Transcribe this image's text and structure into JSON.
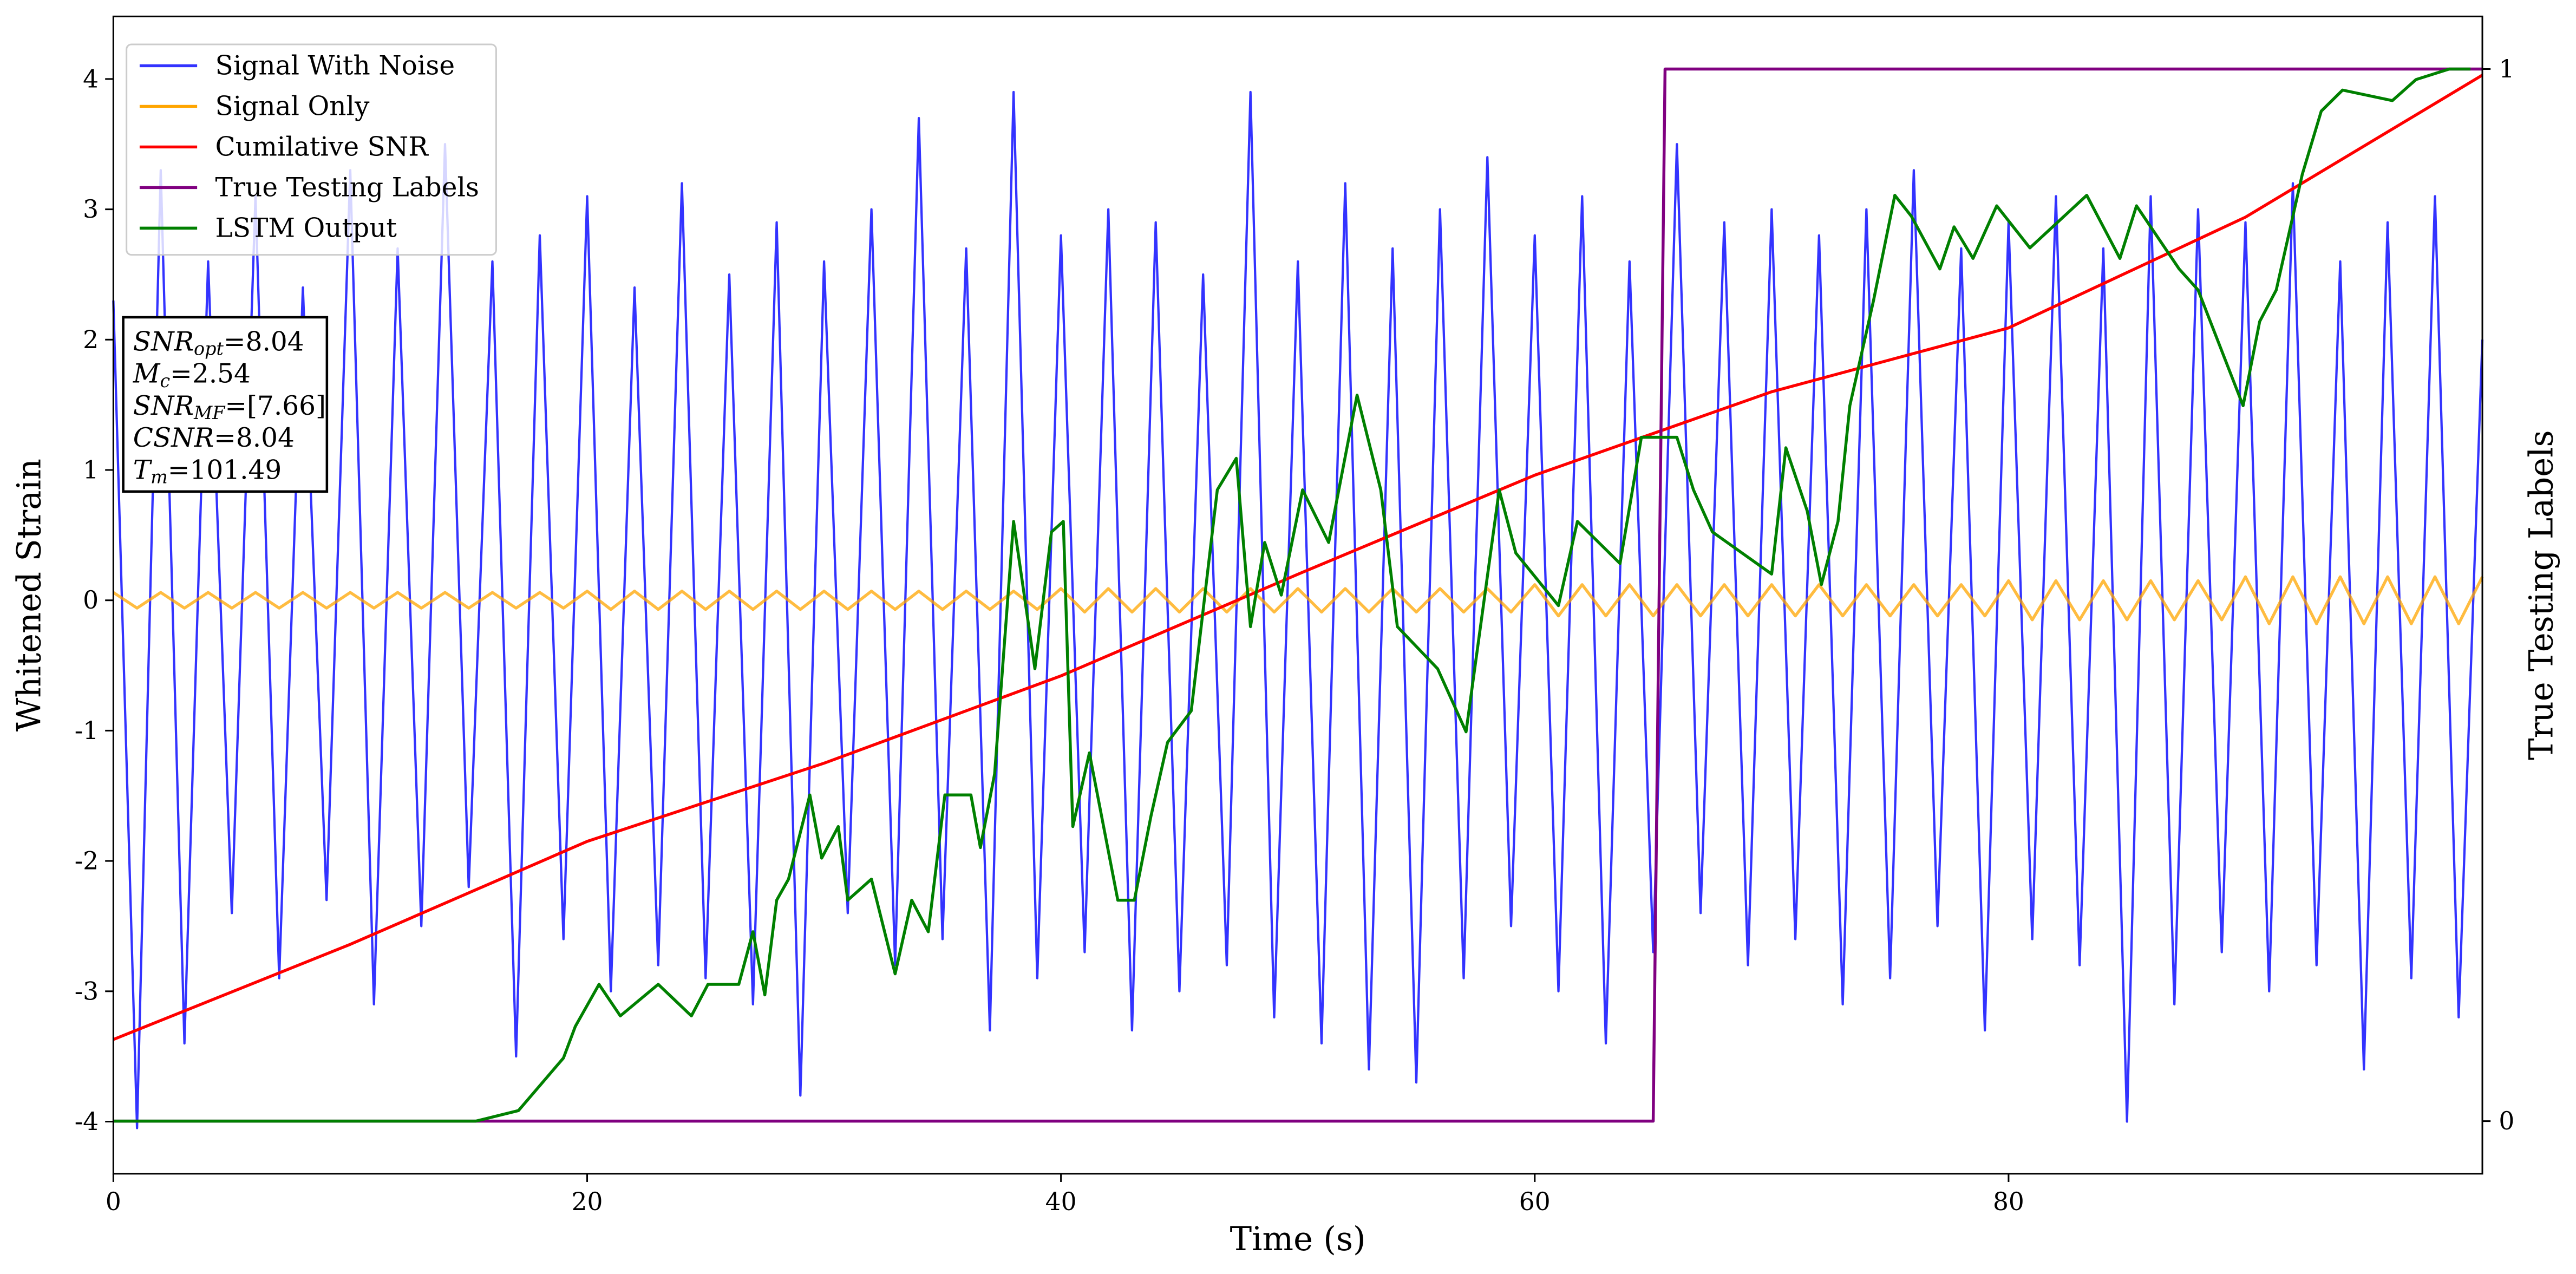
{
  "chart_data": {
    "type": "line",
    "xlabel": "Time (s)",
    "ylabel": "Whitened Strain",
    "y2label": "True Testing Labels",
    "xlim": [
      0,
      100
    ],
    "ylim": [
      -4.4,
      4.48
    ],
    "y2lim": [
      -0.05,
      1.05
    ],
    "xticks": [
      0,
      20,
      40,
      60,
      80
    ],
    "yticks": [
      -4,
      -3,
      -2,
      -1,
      0,
      1,
      2,
      3,
      4
    ],
    "y2ticks": [
      0,
      1
    ],
    "grid": false,
    "legend_loc": "upper left",
    "annotation_lines": [
      {
        "symbol": "SNR",
        "subscript": "opt",
        "text": "=8.04"
      },
      {
        "symbol": "M",
        "subscript": "c",
        "text": "=2.54"
      },
      {
        "symbol": "SNR",
        "subscript": "MF",
        "text": "=[7.66]"
      },
      {
        "symbol": "CSNR",
        "text": "=8.04"
      },
      {
        "symbol": "T",
        "subscript": "m",
        "text": "=101.49"
      }
    ],
    "series": [
      {
        "name": "Signal With Noise",
        "color": "#3333ff",
        "x": [
          0,
          1,
          2,
          3,
          4,
          5,
          6,
          7,
          8,
          9,
          10,
          11,
          12,
          13,
          14,
          15,
          16,
          17,
          18,
          19,
          20,
          21,
          22,
          23,
          24,
          25,
          26,
          27,
          28,
          29,
          30,
          31,
          32,
          33,
          34,
          35,
          36,
          37,
          38,
          39,
          40,
          41,
          42,
          43,
          44,
          45,
          46,
          47,
          48,
          49,
          50,
          51,
          52,
          53,
          54,
          55,
          56,
          57,
          58,
          59,
          60,
          61,
          62,
          63,
          64,
          65,
          66,
          67,
          68,
          69,
          70,
          71,
          72,
          73,
          74,
          75,
          76,
          77,
          78,
          79,
          80,
          81,
          82,
          83,
          84,
          85,
          86,
          87,
          88,
          89,
          90,
          91,
          92,
          93,
          94,
          95,
          96,
          97,
          98,
          99,
          100
        ],
        "values": [
          2.3,
          -4.05,
          3.3,
          -3.4,
          2.6,
          -2.4,
          3.1,
          -2.9,
          2.4,
          -2.3,
          3.3,
          -3.1,
          2.7,
          -2.5,
          3.5,
          -2.2,
          2.6,
          -3.5,
          2.8,
          -2.6,
          3.1,
          -3.0,
          2.4,
          -2.8,
          3.2,
          -2.9,
          2.5,
          -3.1,
          2.9,
          -3.8,
          2.6,
          -2.4,
          3.0,
          -2.8,
          3.7,
          -2.6,
          2.7,
          -3.3,
          3.9,
          -2.9,
          2.8,
          -2.7,
          3.0,
          -3.3,
          2.9,
          -3.0,
          2.5,
          -2.8,
          3.9,
          -3.2,
          2.6,
          -3.4,
          3.2,
          -3.6,
          2.7,
          -3.7,
          3.0,
          -2.9,
          3.4,
          -2.5,
          2.8,
          -3.0,
          3.1,
          -3.4,
          2.6,
          -2.7,
          3.5,
          -2.4,
          2.9,
          -2.8,
          3.0,
          -2.6,
          2.8,
          -3.1,
          3.0,
          -2.9,
          3.3,
          -2.5,
          2.7,
          -3.3,
          2.9,
          -2.6,
          3.1,
          -2.8,
          2.7,
          -4.0,
          3.1,
          -3.1,
          3.0,
          -2.7,
          2.9,
          -3.0,
          3.2,
          -2.8,
          2.6,
          -3.6,
          2.9,
          -2.9,
          3.1,
          -3.2,
          2.0
        ]
      },
      {
        "name": "Signal Only",
        "color": "#ffa500",
        "x": [
          0,
          1,
          2,
          3,
          4,
          5,
          6,
          7,
          8,
          9,
          10,
          11,
          12,
          13,
          14,
          15,
          16,
          17,
          18,
          19,
          20,
          21,
          22,
          23,
          24,
          25,
          26,
          27,
          28,
          29,
          30,
          31,
          32,
          33,
          34,
          35,
          36,
          37,
          38,
          39,
          40,
          41,
          42,
          43,
          44,
          45,
          46,
          47,
          48,
          49,
          50,
          51,
          52,
          53,
          54,
          55,
          56,
          57,
          58,
          59,
          60,
          61,
          62,
          63,
          64,
          65,
          66,
          67,
          68,
          69,
          70,
          71,
          72,
          73,
          74,
          75,
          76,
          77,
          78,
          79,
          80,
          81,
          82,
          83,
          84,
          85,
          86,
          87,
          88,
          89,
          90,
          91,
          92,
          93,
          94,
          95,
          96,
          97,
          98,
          99,
          100
        ],
        "values": [
          0.06,
          -0.06,
          0.06,
          -0.06,
          0.06,
          -0.06,
          0.06,
          -0.06,
          0.06,
          -0.06,
          0.06,
          -0.06,
          0.06,
          -0.06,
          0.06,
          -0.06,
          0.06,
          -0.06,
          0.06,
          -0.06,
          0.07,
          -0.07,
          0.07,
          -0.07,
          0.07,
          -0.07,
          0.07,
          -0.07,
          0.07,
          -0.07,
          0.07,
          -0.07,
          0.07,
          -0.07,
          0.07,
          -0.07,
          0.07,
          -0.07,
          0.07,
          -0.07,
          0.09,
          -0.09,
          0.09,
          -0.09,
          0.09,
          -0.09,
          0.09,
          -0.09,
          0.09,
          -0.09,
          0.09,
          -0.09,
          0.09,
          -0.09,
          0.09,
          -0.09,
          0.09,
          -0.09,
          0.09,
          -0.09,
          0.12,
          -0.12,
          0.12,
          -0.12,
          0.12,
          -0.12,
          0.12,
          -0.12,
          0.12,
          -0.12,
          0.12,
          -0.12,
          0.12,
          -0.12,
          0.12,
          -0.12,
          0.12,
          -0.12,
          0.12,
          -0.12,
          0.15,
          -0.15,
          0.15,
          -0.15,
          0.15,
          -0.15,
          0.15,
          -0.15,
          0.15,
          -0.15,
          0.18,
          -0.18,
          0.18,
          -0.18,
          0.18,
          -0.18,
          0.18,
          -0.18,
          0.18,
          -0.18,
          0.18
        ]
      },
      {
        "name": "Cumilative SNR",
        "color": "#ff0000",
        "x": [
          0,
          10,
          20,
          30,
          40,
          50,
          60,
          70,
          80,
          90,
          100
        ],
        "values": [
          -3.37,
          -2.64,
          -1.85,
          -1.25,
          -0.58,
          0.2,
          0.96,
          1.6,
          2.09,
          2.94,
          4.03
        ]
      },
      {
        "name": "True Testing Labels",
        "color": "#800080",
        "axis": "y2",
        "x": [
          0,
          65,
          65.5,
          100
        ],
        "values": [
          0,
          0,
          1,
          1
        ]
      },
      {
        "name": "LSTM Output",
        "color": "#008000",
        "axis": "y2",
        "x": [
          0,
          15.3,
          17.1,
          19,
          19.5,
          20.5,
          21.4,
          23,
          24.4,
          25.1,
          26.4,
          27,
          27.5,
          28,
          28.5,
          29.4,
          29.9,
          30.6,
          31,
          32,
          33,
          33.7,
          34.4,
          35.1,
          36.2,
          36.6,
          37.2,
          38,
          38.9,
          39.6,
          40.1,
          40.5,
          41.2,
          42.4,
          43.1,
          43.8,
          44.5,
          45.5,
          46.6,
          47.4,
          48,
          48.6,
          49.3,
          50.2,
          51.3,
          52.5,
          53.5,
          54.2,
          55.9,
          57.1,
          58.5,
          59.2,
          61,
          61.8,
          63.6,
          64.5,
          66,
          66.7,
          67.5,
          70,
          70.6,
          71.5,
          72.1,
          72.8,
          73.3,
          74.3,
          75.2,
          75.9,
          77.1,
          77.7,
          78.5,
          79.5,
          80.9,
          83.3,
          84.7,
          85.4,
          87.2,
          88,
          89.9,
          90.6,
          91.3,
          92.4,
          93.2,
          94.1,
          96.2,
          97.2,
          98.6,
          99.5
        ],
        "values": [
          0,
          0,
          0.01,
          0.06,
          0.09,
          0.13,
          0.1,
          0.13,
          0.1,
          0.13,
          0.13,
          0.18,
          0.12,
          0.21,
          0.23,
          0.31,
          0.25,
          0.28,
          0.21,
          0.23,
          0.14,
          0.21,
          0.18,
          0.31,
          0.31,
          0.26,
          0.33,
          0.57,
          0.43,
          0.56,
          0.57,
          0.28,
          0.35,
          0.21,
          0.21,
          0.29,
          0.36,
          0.39,
          0.6,
          0.63,
          0.47,
          0.55,
          0.5,
          0.6,
          0.55,
          0.69,
          0.6,
          0.47,
          0.43,
          0.37,
          0.6,
          0.54,
          0.49,
          0.57,
          0.53,
          0.65,
          0.65,
          0.6,
          0.56,
          0.52,
          0.64,
          0.58,
          0.51,
          0.57,
          0.68,
          0.78,
          0.88,
          0.86,
          0.81,
          0.85,
          0.82,
          0.87,
          0.83,
          0.88,
          0.82,
          0.87,
          0.81,
          0.79,
          0.68,
          0.76,
          0.79,
          0.9,
          0.96,
          0.98,
          0.97,
          0.99,
          1,
          1
        ]
      }
    ]
  }
}
